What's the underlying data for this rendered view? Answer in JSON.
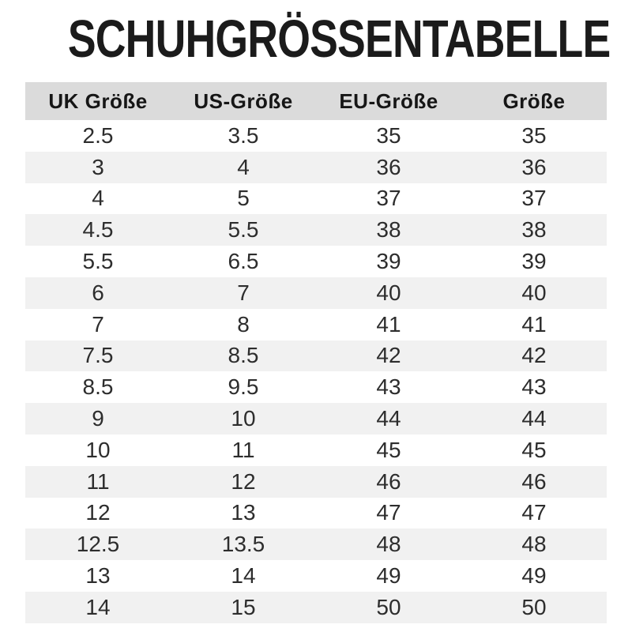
{
  "title": "SCHUHGRÖSSENTABELLE",
  "table": {
    "columns": [
      "UK Größe",
      "US-Größe",
      "EU-Größe",
      "Größe"
    ],
    "rows": [
      [
        "2.5",
        "3.5",
        "35",
        "35"
      ],
      [
        "3",
        "4",
        "36",
        "36"
      ],
      [
        "4",
        "5",
        "37",
        "37"
      ],
      [
        "4.5",
        "5.5",
        "38",
        "38"
      ],
      [
        "5.5",
        "6.5",
        "39",
        "39"
      ],
      [
        "6",
        "7",
        "40",
        "40"
      ],
      [
        "7",
        "8",
        "41",
        "41"
      ],
      [
        "7.5",
        "8.5",
        "42",
        "42"
      ],
      [
        "8.5",
        "9.5",
        "43",
        "43"
      ],
      [
        "9",
        "10",
        "44",
        "44"
      ],
      [
        "10",
        "11",
        "45",
        "45"
      ],
      [
        "11",
        "12",
        "46",
        "46"
      ],
      [
        "12",
        "13",
        "47",
        "47"
      ],
      [
        "12.5",
        "13.5",
        "48",
        "48"
      ],
      [
        "13",
        "14",
        "49",
        "49"
      ],
      [
        "14",
        "15",
        "50",
        "50"
      ]
    ]
  },
  "colors": {
    "header_bg": "#dbdbdb",
    "stripe_bg": "#f1f1f1",
    "title_text": "#1b1b1b",
    "cell_text": "#2d2d2d"
  }
}
